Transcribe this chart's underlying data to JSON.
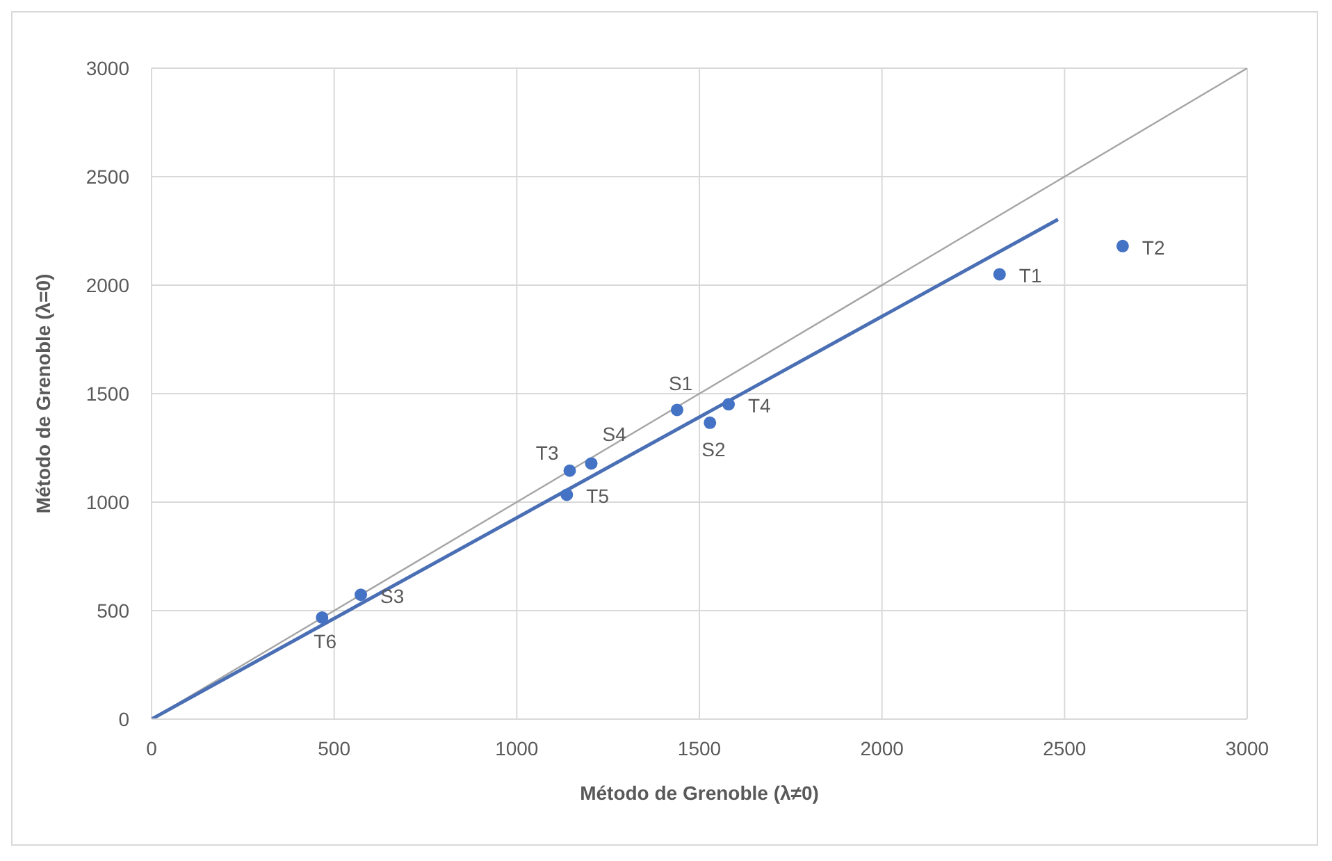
{
  "chart_data": {
    "type": "scatter",
    "xlabel": "Método de Grenoble (λ≠0)",
    "ylabel": "Método de Grenoble (λ=0)",
    "xlim": [
      0,
      3000
    ],
    "xticks": [
      0,
      500,
      1000,
      1500,
      2000,
      2500,
      3000
    ],
    "ylim": [
      0,
      3000
    ],
    "yticks": [
      0,
      500,
      1000,
      1500,
      2000,
      2500,
      3000
    ],
    "grid": true,
    "legend": false,
    "marker": "circle",
    "series": [
      {
        "type": "line",
        "color": "#a5a5a5",
        "x": [
          0,
          3000
        ],
        "values": [
          0,
          3000
        ],
        "marker": "none"
      },
      {
        "type": "line",
        "color": "#4a6fb5",
        "x": [
          0,
          2482
        ],
        "values": [
          0,
          2303
        ],
        "marker": "none"
      },
      {
        "color": "#4472c4",
        "x": [
          2322,
          2659,
          1439,
          1580,
          1529,
          1204,
          1145,
          1137,
          573,
          467
        ],
        "values": [
          2050,
          2180,
          1425,
          1451,
          1366,
          1178,
          1145,
          1034,
          573,
          468
        ]
      }
    ],
    "annotations": [
      {
        "text": "T1",
        "x": 2322,
        "y": 2050
      },
      {
        "text": "T2",
        "x": 2659,
        "y": 2180
      },
      {
        "text": "S1",
        "x": 1439,
        "y": 1425
      },
      {
        "text": "T4",
        "x": 1580,
        "y": 1451
      },
      {
        "text": "S2",
        "x": 1529,
        "y": 1366
      },
      {
        "text": "S4",
        "x": 1204,
        "y": 1178
      },
      {
        "text": "T3",
        "x": 1145,
        "y": 1145
      },
      {
        "text": "T5",
        "x": 1137,
        "y": 1034
      },
      {
        "text": "S3",
        "x": 573,
        "y": 573
      },
      {
        "text": "T6",
        "x": 467,
        "y": 468
      }
    ]
  }
}
